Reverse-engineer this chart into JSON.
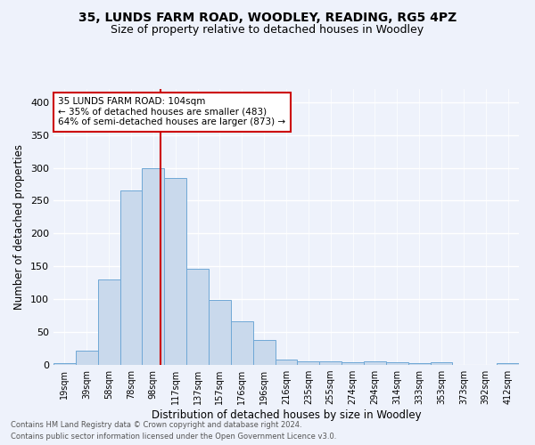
{
  "title1": "35, LUNDS FARM ROAD, WOODLEY, READING, RG5 4PZ",
  "title2": "Size of property relative to detached houses in Woodley",
  "xlabel": "Distribution of detached houses by size in Woodley",
  "ylabel": "Number of detached properties",
  "bin_labels": [
    "19sqm",
    "39sqm",
    "58sqm",
    "78sqm",
    "98sqm",
    "117sqm",
    "137sqm",
    "157sqm",
    "176sqm",
    "196sqm",
    "216sqm",
    "235sqm",
    "255sqm",
    "274sqm",
    "294sqm",
    "314sqm",
    "333sqm",
    "353sqm",
    "373sqm",
    "392sqm",
    "412sqm"
  ],
  "bar_heights": [
    3,
    22,
    130,
    265,
    300,
    285,
    147,
    99,
    66,
    38,
    8,
    5,
    5,
    4,
    5,
    4,
    3,
    4,
    0,
    0,
    3
  ],
  "bar_color": "#c9d9ec",
  "bar_edge_color": "#6fa8d6",
  "vline_color": "#cc0000",
  "ylim": [
    0,
    420
  ],
  "annotation_line1": "35 LUNDS FARM ROAD: 104sqm",
  "annotation_line2": "← 35% of detached houses are smaller (483)",
  "annotation_line3": "64% of semi-detached houses are larger (873) →",
  "annotation_box_color": "white",
  "annotation_box_edge": "#cc0000",
  "footnote1": "Contains HM Land Registry data © Crown copyright and database right 2024.",
  "footnote2": "Contains public sector information licensed under the Open Government Licence v3.0.",
  "bg_color": "#eef2fb",
  "grid_color": "white",
  "title_fontsize": 10,
  "subtitle_fontsize": 9
}
